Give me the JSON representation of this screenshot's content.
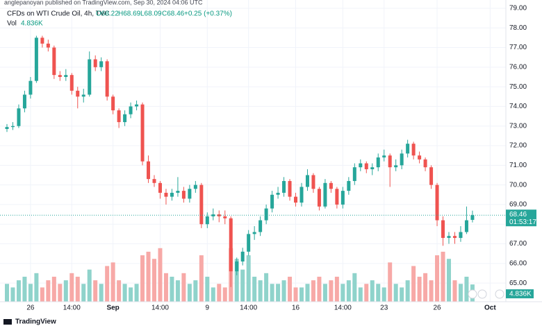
{
  "chart_data": {
    "type": "candlestick",
    "published": "anglepanoyan published on TradingView.com, Sep 30, 2024 04:06 UTC",
    "legend": {
      "symbol": "CFDs on WTI Crude Oil, 4h, TVC",
      "open": "O68.22",
      "high": "H68.69",
      "low": "L68.09",
      "close": "C68.46",
      "change": "+0.25 (+0.37%)",
      "volume_name": "Vol",
      "volume": "4.836K"
    },
    "last_price_label": "68.46",
    "countdown": "01:53:17",
    "volume_tag": "4.836K",
    "brand": "TradingView",
    "up_color": "#26a69a",
    "down_color": "#ef5350",
    "volume_up_color": "#8fd3cb",
    "volume_down_color": "#f7a9a7",
    "grid": true,
    "categories": [
      null,
      null,
      null,
      null,
      "26",
      null,
      null,
      null,
      null,
      null,
      null,
      "14:00",
      null,
      null,
      null,
      null,
      null,
      null,
      "Sep",
      null,
      null,
      null,
      null,
      null,
      null,
      null,
      "14:00",
      null,
      null,
      null,
      null,
      null,
      null,
      null,
      "9",
      null,
      null,
      null,
      null,
      null,
      null,
      "14:00",
      null,
      null,
      null,
      null,
      null,
      null,
      null,
      "16",
      null,
      null,
      null,
      null,
      null,
      null,
      null,
      "14:00",
      null,
      null,
      null,
      null,
      null,
      null,
      "23",
      null,
      null,
      null,
      null,
      null,
      null,
      null,
      null,
      "26",
      null,
      null,
      null,
      null,
      null,
      null,
      null,
      null,
      "Oct",
      null
    ],
    "open": [
      72.85,
      72.95,
      73.0,
      73.9,
      74.6,
      75.3,
      77.5,
      77.2,
      77.0,
      75.6,
      75.5,
      75.6,
      74.8,
      74.5,
      74.6,
      76.4,
      76.0,
      76.3,
      74.5,
      73.8,
      73.2,
      73.6,
      74.0,
      74.1,
      71.2,
      70.3,
      70.1,
      69.6,
      69.4,
      69.6,
      69.7,
      69.3,
      69.8,
      70.0,
      68.0,
      68.4,
      68.5,
      68.4,
      68.3,
      65.6,
      66.1,
      66.6,
      67.5,
      67.6,
      68.2,
      68.8,
      69.5,
      69.6,
      70.2,
      69.4,
      69.1,
      69.9,
      70.5,
      69.8,
      68.9,
      70.1,
      69.8,
      69.0,
      69.7,
      70.2,
      70.9,
      71.1,
      70.8,
      70.9,
      71.4,
      71.5,
      70.9,
      71.0,
      71.6,
      72.1,
      71.5,
      71.3,
      70.9,
      70.0,
      68.2,
      67.3,
      67.4,
      67.3,
      67.6,
      68.22,
      null,
      null,
      null,
      null
    ],
    "high": [
      73.1,
      73.2,
      74.1,
      74.8,
      75.5,
      77.6,
      77.6,
      77.4,
      77.1,
      75.8,
      75.9,
      75.7,
      75.0,
      74.9,
      76.8,
      76.6,
      76.5,
      76.4,
      74.6,
      73.9,
      73.8,
      74.2,
      74.3,
      74.2,
      71.5,
      70.5,
      70.2,
      69.8,
      69.8,
      70.4,
      69.9,
      70.0,
      70.2,
      70.1,
      68.6,
      68.8,
      68.7,
      68.7,
      68.4,
      66.3,
      66.8,
      67.7,
      67.9,
      68.4,
      69.0,
      69.7,
      69.9,
      70.4,
      70.3,
      69.6,
      70.1,
      70.8,
      70.6,
      69.9,
      70.3,
      70.2,
      69.9,
      69.9,
      70.4,
      71.1,
      71.3,
      71.2,
      71.1,
      71.6,
      71.8,
      71.6,
      71.3,
      71.8,
      72.3,
      72.2,
      71.7,
      71.4,
      71.0,
      70.1,
      68.4,
      67.6,
      67.6,
      67.9,
      68.9,
      68.69,
      null,
      null,
      null,
      null
    ],
    "low": [
      72.7,
      72.8,
      72.9,
      73.7,
      74.4,
      75.2,
      77.0,
      76.8,
      75.4,
      75.3,
      75.3,
      74.6,
      73.9,
      74.2,
      74.5,
      75.8,
      75.8,
      74.3,
      73.6,
      72.9,
      73.0,
      73.4,
      73.8,
      71.0,
      70.1,
      69.9,
      69.3,
      69.0,
      69.2,
      69.4,
      69.1,
      69.1,
      69.6,
      67.8,
      67.8,
      68.2,
      68.1,
      68.0,
      64.8,
      65.4,
      65.9,
      66.4,
      67.2,
      67.4,
      68.0,
      68.6,
      69.3,
      69.4,
      69.2,
      68.9,
      68.9,
      69.7,
      69.6,
      68.7,
      68.8,
      69.6,
      68.8,
      68.8,
      69.5,
      70.0,
      70.7,
      70.6,
      70.5,
      70.7,
      71.2,
      69.9,
      70.7,
      70.8,
      71.4,
      71.3,
      71.1,
      70.7,
      69.8,
      67.9,
      66.9,
      67.0,
      67.0,
      67.1,
      67.5,
      68.09,
      null,
      null,
      null,
      null
    ],
    "close": [
      72.95,
      73.0,
      73.9,
      74.6,
      75.3,
      77.5,
      77.2,
      77.0,
      75.6,
      75.5,
      75.6,
      74.8,
      74.5,
      74.6,
      76.4,
      76.0,
      76.3,
      74.5,
      73.8,
      73.2,
      73.6,
      74.0,
      74.1,
      71.2,
      70.3,
      70.1,
      69.6,
      69.4,
      69.6,
      69.7,
      69.3,
      69.8,
      70.0,
      68.0,
      68.4,
      68.5,
      68.4,
      68.3,
      65.6,
      66.1,
      66.6,
      67.5,
      67.6,
      68.2,
      68.8,
      69.5,
      69.6,
      70.2,
      69.4,
      69.1,
      69.9,
      70.5,
      69.8,
      68.9,
      70.1,
      69.8,
      69.0,
      69.7,
      70.2,
      70.9,
      71.1,
      70.8,
      70.9,
      71.4,
      71.5,
      70.9,
      71.0,
      71.6,
      72.1,
      71.5,
      71.3,
      70.9,
      70.0,
      68.2,
      67.3,
      67.4,
      67.3,
      67.6,
      68.2,
      68.46,
      null,
      null,
      null,
      null
    ],
    "volume": [
      5,
      4,
      6,
      7,
      5,
      8,
      4,
      6,
      7,
      5,
      6,
      8,
      7,
      5,
      9,
      6,
      5,
      10,
      11,
      6,
      5,
      4,
      5,
      13,
      14,
      12,
      15,
      8,
      7,
      6,
      8,
      5,
      6,
      13,
      7,
      4,
      5,
      4,
      15,
      12,
      9,
      13,
      7,
      6,
      8,
      5,
      5,
      6,
      7,
      4,
      4,
      5,
      6,
      7,
      5,
      6,
      7,
      5,
      6,
      8,
      4,
      5,
      6,
      5,
      4,
      11,
      5,
      4,
      6,
      10,
      7,
      8,
      6,
      13,
      14,
      12,
      6,
      5,
      7,
      4.836,
      null,
      null,
      null,
      null
    ],
    "vlim": [
      0,
      20
    ],
    "ylim": [
      64.05,
      79.21
    ],
    "yticks": [
      {
        "value": 65,
        "label": "65.00"
      },
      {
        "value": 66,
        "label": "66.00"
      },
      {
        "value": 67,
        "label": "67.00"
      },
      {
        "value": 68,
        "label": "68.00"
      },
      {
        "value": 69,
        "label": "69.00"
      },
      {
        "value": 70,
        "label": "70.00"
      },
      {
        "value": 71,
        "label": "71.00"
      },
      {
        "value": 72,
        "label": "72.00"
      },
      {
        "value": 73,
        "label": "73.00"
      },
      {
        "value": 74,
        "label": "74.00"
      },
      {
        "value": 75,
        "label": "75.00"
      },
      {
        "value": 76,
        "label": "76.00"
      },
      {
        "value": 77,
        "label": "77.00"
      },
      {
        "value": 78,
        "label": "78.00"
      },
      {
        "value": 79,
        "label": "79.00"
      }
    ]
  }
}
